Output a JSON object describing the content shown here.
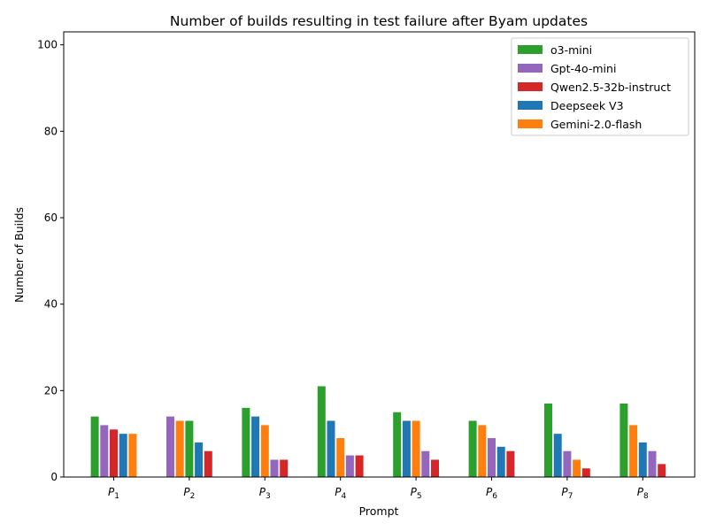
{
  "chart_data": {
    "type": "bar",
    "title": "Number of builds resulting in test failure after Byam updates",
    "xlabel": "Prompt",
    "ylabel": "Number of Builds",
    "ylim": [
      0,
      103
    ],
    "yticks": [
      0,
      20,
      40,
      60,
      80,
      100
    ],
    "grid": false,
    "legend_position": "top-right",
    "categories": [
      {
        "main": "P",
        "sub": "1"
      },
      {
        "main": "P",
        "sub": "2"
      },
      {
        "main": "P",
        "sub": "3"
      },
      {
        "main": "P",
        "sub": "4"
      },
      {
        "main": "P",
        "sub": "5"
      },
      {
        "main": "P",
        "sub": "6"
      },
      {
        "main": "P",
        "sub": "7"
      },
      {
        "main": "P",
        "sub": "8"
      }
    ],
    "legend": [
      {
        "name": "o3-mini",
        "color": "#2ca02c"
      },
      {
        "name": "Gpt-4o-mini",
        "color": "#9467bd"
      },
      {
        "name": "Qwen2.5-32b-instruct",
        "color": "#d62728"
      },
      {
        "name": "Deepseek V3",
        "color": "#1f77b4"
      },
      {
        "name": "Gemini-2.0-flash",
        "color": "#ff7f0e"
      }
    ],
    "groups": [
      {
        "bars": [
          {
            "model": "o3-mini",
            "value": 14
          },
          {
            "model": "Gpt-4o-mini",
            "value": 12
          },
          {
            "model": "Qwen2.5-32b-instruct",
            "value": 11
          },
          {
            "model": "Deepseek V3",
            "value": 10
          },
          {
            "model": "Gemini-2.0-flash",
            "value": 10
          }
        ]
      },
      {
        "bars": [
          {
            "model": "Gpt-4o-mini",
            "value": 14
          },
          {
            "model": "Gemini-2.0-flash",
            "value": 13
          },
          {
            "model": "o3-mini",
            "value": 13
          },
          {
            "model": "Deepseek V3",
            "value": 8
          },
          {
            "model": "Qwen2.5-32b-instruct",
            "value": 6
          }
        ]
      },
      {
        "bars": [
          {
            "model": "o3-mini",
            "value": 16
          },
          {
            "model": "Deepseek V3",
            "value": 14
          },
          {
            "model": "Gemini-2.0-flash",
            "value": 12
          },
          {
            "model": "Gpt-4o-mini",
            "value": 4
          },
          {
            "model": "Qwen2.5-32b-instruct",
            "value": 4
          }
        ]
      },
      {
        "bars": [
          {
            "model": "o3-mini",
            "value": 21
          },
          {
            "model": "Deepseek V3",
            "value": 13
          },
          {
            "model": "Gemini-2.0-flash",
            "value": 9
          },
          {
            "model": "Gpt-4o-mini",
            "value": 5
          },
          {
            "model": "Qwen2.5-32b-instruct",
            "value": 5
          }
        ]
      },
      {
        "bars": [
          {
            "model": "o3-mini",
            "value": 15
          },
          {
            "model": "Deepseek V3",
            "value": 13
          },
          {
            "model": "Gemini-2.0-flash",
            "value": 13
          },
          {
            "model": "Gpt-4o-mini",
            "value": 6
          },
          {
            "model": "Qwen2.5-32b-instruct",
            "value": 4
          }
        ]
      },
      {
        "bars": [
          {
            "model": "o3-mini",
            "value": 13
          },
          {
            "model": "Gemini-2.0-flash",
            "value": 12
          },
          {
            "model": "Gpt-4o-mini",
            "value": 9
          },
          {
            "model": "Deepseek V3",
            "value": 7
          },
          {
            "model": "Qwen2.5-32b-instruct",
            "value": 6
          }
        ]
      },
      {
        "bars": [
          {
            "model": "o3-mini",
            "value": 17
          },
          {
            "model": "Deepseek V3",
            "value": 10
          },
          {
            "model": "Gpt-4o-mini",
            "value": 6
          },
          {
            "model": "Gemini-2.0-flash",
            "value": 4
          },
          {
            "model": "Qwen2.5-32b-instruct",
            "value": 2
          }
        ]
      },
      {
        "bars": [
          {
            "model": "o3-mini",
            "value": 17
          },
          {
            "model": "Gemini-2.0-flash",
            "value": 12
          },
          {
            "model": "Deepseek V3",
            "value": 8
          },
          {
            "model": "Gpt-4o-mini",
            "value": 6
          },
          {
            "model": "Qwen2.5-32b-instruct",
            "value": 3
          }
        ]
      }
    ]
  }
}
